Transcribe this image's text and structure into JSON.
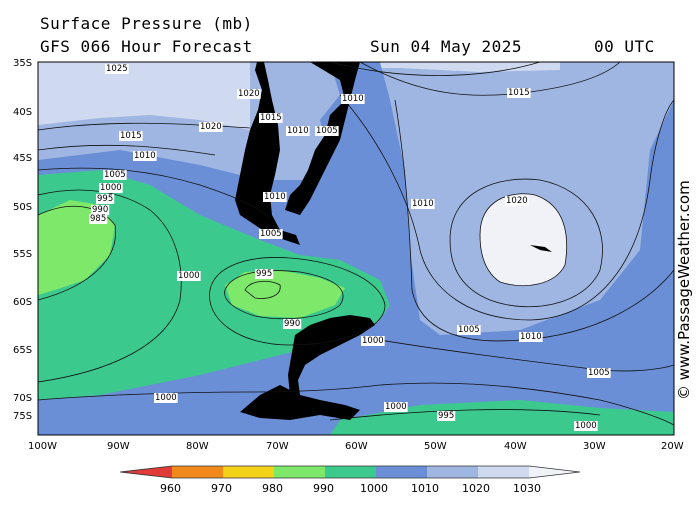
{
  "header": {
    "title": "Surface Pressure (mb)",
    "subtitle": "GFS 066 Hour Forecast",
    "date": "Sun 04 May 2025",
    "time": "00 UTC"
  },
  "copyright": "© www.PassageWeather.com",
  "axes": {
    "lat_labels": [
      "35S",
      "40S",
      "45S",
      "50S",
      "55S",
      "60S",
      "65S",
      "70S",
      "75S"
    ],
    "lon_labels": [
      "100W",
      "90W",
      "80W",
      "70W",
      "60W",
      "50W",
      "40W",
      "30W",
      "20W"
    ]
  },
  "colorbar": {
    "labels": [
      "960",
      "970",
      "980",
      "990",
      "1000",
      "1010",
      "1020",
      "1030"
    ],
    "colors": [
      "#e03a3a",
      "#f08a1a",
      "#f5d21a",
      "#7de86a",
      "#3cc98e",
      "#6a8fd6",
      "#9fb6e2",
      "#cfdaf0",
      "#f0f2f8"
    ]
  },
  "isobar_labels": [
    {
      "t": "1025"
    },
    {
      "t": "1020"
    },
    {
      "t": "1015"
    },
    {
      "t": "1010"
    },
    {
      "t": "1005"
    },
    {
      "t": "1000"
    },
    {
      "t": "995"
    },
    {
      "t": "990"
    },
    {
      "t": "985"
    },
    {
      "t": "1020"
    },
    {
      "t": "1015"
    },
    {
      "t": "1010"
    },
    {
      "t": "1010"
    },
    {
      "t": "1005"
    },
    {
      "t": "1000"
    },
    {
      "t": "995"
    },
    {
      "t": "990"
    },
    {
      "t": "1005"
    },
    {
      "t": "1000"
    },
    {
      "t": "1000"
    },
    {
      "t": "1005"
    },
    {
      "t": "995"
    },
    {
      "t": "1000"
    },
    {
      "t": "1010"
    },
    {
      "t": "1010"
    },
    {
      "t": "1015"
    },
    {
      "t": "1020"
    },
    {
      "t": "1010"
    },
    {
      "t": "1005"
    },
    {
      "t": "1000"
    }
  ]
}
